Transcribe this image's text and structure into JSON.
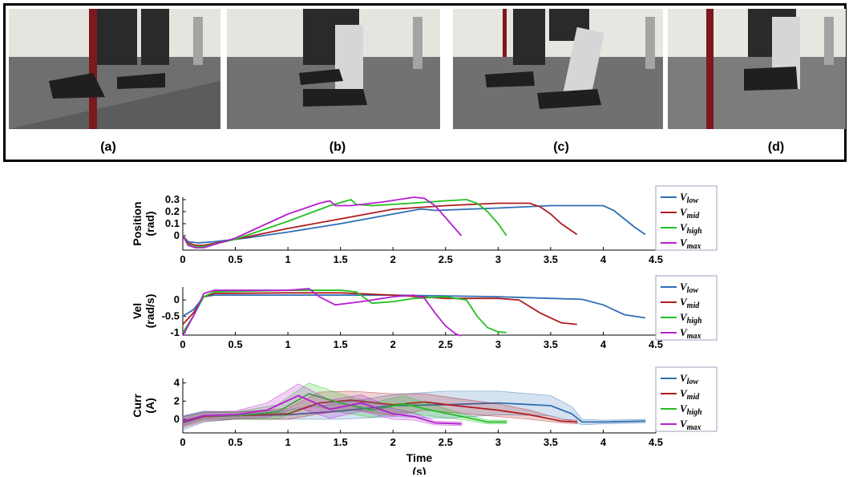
{
  "photo_panel": {
    "captions": [
      "(a)",
      "(b)",
      "(c)",
      "(d)"
    ]
  },
  "legend": [
    "low",
    "mid",
    "high",
    "max"
  ],
  "legend_symbol": "V",
  "colors": {
    "low": "#2e6fb5",
    "mid": "#b01c20",
    "high": "#22c022",
    "max": "#b51fcf"
  },
  "chart_data": [
    {
      "type": "line",
      "ylabel": [
        "Position",
        "(rad)"
      ],
      "xlim": [
        0,
        4.5
      ],
      "ylim": [
        -0.12,
        0.32
      ],
      "xticks": [
        "0",
        "0.5",
        "1",
        "1.5",
        "2",
        "2.5",
        "3",
        "3.5",
        "4",
        "4.5"
      ],
      "yticks": [
        {
          "v": 0.3,
          "t": "0.3"
        },
        {
          "v": 0.2,
          "t": "0.2"
        },
        {
          "v": 0.1,
          "t": "0.1"
        },
        {
          "v": 0,
          "t": "0"
        }
      ],
      "series": [
        {
          "name": "low",
          "x": [
            0,
            0.05,
            0.15,
            0.3,
            0.6,
            1,
            1.5,
            2,
            2.25,
            2.3,
            2.4,
            3,
            3.5,
            4,
            4.1,
            4.2,
            4.3,
            4.4
          ],
          "y": [
            0,
            -0.05,
            -0.06,
            -0.05,
            -0.02,
            0.03,
            0.1,
            0.18,
            0.22,
            0.22,
            0.21,
            0.23,
            0.25,
            0.25,
            0.21,
            0.14,
            0.07,
            0.01
          ]
        },
        {
          "name": "mid",
          "x": [
            0,
            0.05,
            0.12,
            0.2,
            0.5,
            1,
            1.5,
            2,
            2.5,
            3,
            3.3,
            3.4,
            3.5,
            3.6,
            3.75
          ],
          "y": [
            0,
            -0.06,
            -0.08,
            -0.08,
            -0.03,
            0.06,
            0.14,
            0.22,
            0.25,
            0.27,
            0.27,
            0.24,
            0.18,
            0.1,
            0.01
          ]
        },
        {
          "name": "high",
          "x": [
            0,
            0.05,
            0.1,
            0.2,
            0.5,
            1,
            1.4,
            1.6,
            1.65,
            1.8,
            2,
            2.5,
            2.7,
            2.8,
            2.9,
            3,
            3.08
          ],
          "y": [
            0,
            -0.07,
            -0.09,
            -0.09,
            -0.03,
            0.12,
            0.25,
            0.3,
            0.26,
            0.25,
            0.26,
            0.29,
            0.3,
            0.27,
            0.2,
            0.1,
            0.0
          ]
        },
        {
          "name": "max",
          "x": [
            0,
            0.05,
            0.12,
            0.2,
            0.5,
            1,
            1.3,
            1.4,
            1.45,
            1.6,
            1.9,
            2.2,
            2.3,
            2.4,
            2.5,
            2.6,
            2.65
          ],
          "y": [
            0,
            -0.08,
            -0.1,
            -0.1,
            -0.02,
            0.18,
            0.27,
            0.29,
            0.25,
            0.25,
            0.28,
            0.32,
            0.31,
            0.25,
            0.15,
            0.05,
            0.0
          ]
        }
      ]
    },
    {
      "type": "line",
      "ylabel": [
        "Vel",
        "(rad/s)"
      ],
      "xlim": [
        0,
        4.5
      ],
      "ylim": [
        -1.08,
        0.4
      ],
      "xticks": [
        "0",
        "0.5",
        "1",
        "1.5",
        "2",
        "2.5",
        "3",
        "3.5",
        "4",
        "4.5"
      ],
      "yticks": [
        {
          "v": 0,
          "t": "0"
        },
        {
          "v": -0.5,
          "t": "-0.5"
        },
        {
          "v": -1,
          "t": "-1"
        }
      ],
      "series": [
        {
          "name": "low",
          "x": [
            0,
            0.1,
            0.2,
            0.3,
            1,
            2,
            3,
            3.5,
            3.8,
            4,
            4.2,
            4.4
          ],
          "y": [
            -0.5,
            -0.3,
            0.1,
            0.15,
            0.15,
            0.15,
            0.1,
            0.05,
            0.02,
            -0.15,
            -0.45,
            -0.55
          ]
        },
        {
          "name": "mid",
          "x": [
            0,
            0.1,
            0.2,
            0.3,
            1,
            1.5,
            2,
            2.5,
            3,
            3.2,
            3.4,
            3.6,
            3.75
          ],
          "y": [
            -0.75,
            -0.4,
            0.1,
            0.2,
            0.22,
            0.22,
            0.15,
            0.05,
            0.05,
            0.0,
            -0.4,
            -0.7,
            -0.75
          ]
        },
        {
          "name": "high",
          "x": [
            0,
            0.1,
            0.2,
            0.3,
            1,
            1.5,
            1.65,
            1.8,
            2,
            2.2,
            2.5,
            2.7,
            2.8,
            2.9,
            3,
            3.08
          ],
          "y": [
            -1,
            -0.5,
            0.1,
            0.25,
            0.3,
            0.3,
            0.25,
            -0.1,
            -0.05,
            0.05,
            0.1,
            0.0,
            -0.5,
            -0.85,
            -0.98,
            -1.0
          ]
        },
        {
          "name": "max",
          "x": [
            0,
            0.1,
            0.2,
            0.3,
            1,
            1.2,
            1.3,
            1.45,
            1.7,
            2,
            2.2,
            2.3,
            2.4,
            2.5,
            2.6,
            2.65
          ],
          "y": [
            -1.1,
            -0.5,
            0.2,
            0.3,
            0.3,
            0.35,
            0.1,
            -0.15,
            -0.05,
            0.1,
            0.15,
            0.05,
            -0.4,
            -0.8,
            -1.05,
            -1.1
          ]
        }
      ]
    },
    {
      "type": "line",
      "ylabel": [
        "Curr",
        "(A)"
      ],
      "xlim": [
        0,
        4.5
      ],
      "ylim": [
        -1.5,
        4.5
      ],
      "xticks": [
        "0",
        "0.5",
        "1",
        "1.5",
        "2",
        "2.5",
        "3",
        "3.5",
        "4",
        "4.5"
      ],
      "yticks": [
        {
          "v": 4,
          "t": "4"
        },
        {
          "v": 2,
          "t": "2"
        },
        {
          "v": 0,
          "t": "0"
        }
      ],
      "xlabel": [
        "Time",
        "(s)"
      ],
      "series": [
        {
          "name": "low",
          "x": [
            0,
            0.2,
            0.5,
            1,
            1.5,
            2,
            2.5,
            3,
            3.5,
            3.7,
            3.8,
            4,
            4.4
          ],
          "y": [
            -0.4,
            0.3,
            0.4,
            0.5,
            0.9,
            1.5,
            1.6,
            1.8,
            1.5,
            0.6,
            -0.3,
            -0.3,
            -0.2
          ],
          "band": [
            0.8,
            0.6,
            0.4,
            0.5,
            0.9,
            1.2,
            1.5,
            1.3,
            1.1,
            0.8,
            0.3,
            0.2,
            0.2
          ]
        },
        {
          "name": "mid",
          "x": [
            0,
            0.2,
            0.5,
            1,
            1.3,
            1.6,
            2,
            2.3,
            2.6,
            3,
            3.3,
            3.6,
            3.75
          ],
          "y": [
            -0.3,
            0.3,
            0.4,
            0.6,
            1.8,
            2.1,
            1.6,
            1.9,
            1.5,
            1.0,
            0.5,
            -0.2,
            -0.3
          ],
          "band": [
            0.6,
            0.5,
            0.4,
            0.6,
            1.2,
            1.0,
            1.2,
            0.9,
            0.8,
            0.7,
            0.5,
            0.2,
            0.2
          ]
        },
        {
          "name": "high",
          "x": [
            0,
            0.2,
            0.5,
            0.9,
            1.2,
            1.5,
            1.8,
            2.1,
            2.4,
            2.7,
            2.9,
            3.08
          ],
          "y": [
            -0.2,
            0.4,
            0.4,
            0.8,
            2.8,
            1.8,
            1.0,
            1.7,
            0.9,
            0.2,
            -0.3,
            -0.3
          ],
          "band": [
            0.5,
            0.4,
            0.4,
            0.8,
            1.2,
            1.0,
            0.8,
            0.9,
            0.6,
            0.3,
            0.2,
            0.2
          ]
        },
        {
          "name": "max",
          "x": [
            0,
            0.2,
            0.5,
            0.8,
            1.1,
            1.4,
            1.7,
            2.0,
            2.2,
            2.4,
            2.65
          ],
          "y": [
            -0.2,
            0.4,
            0.5,
            1.0,
            2.6,
            1.1,
            1.8,
            0.6,
            0.3,
            -0.4,
            -0.5
          ],
          "band": [
            0.5,
            0.4,
            0.4,
            0.8,
            1.3,
            1.0,
            0.9,
            0.6,
            0.4,
            0.2,
            0.2
          ]
        }
      ]
    }
  ]
}
